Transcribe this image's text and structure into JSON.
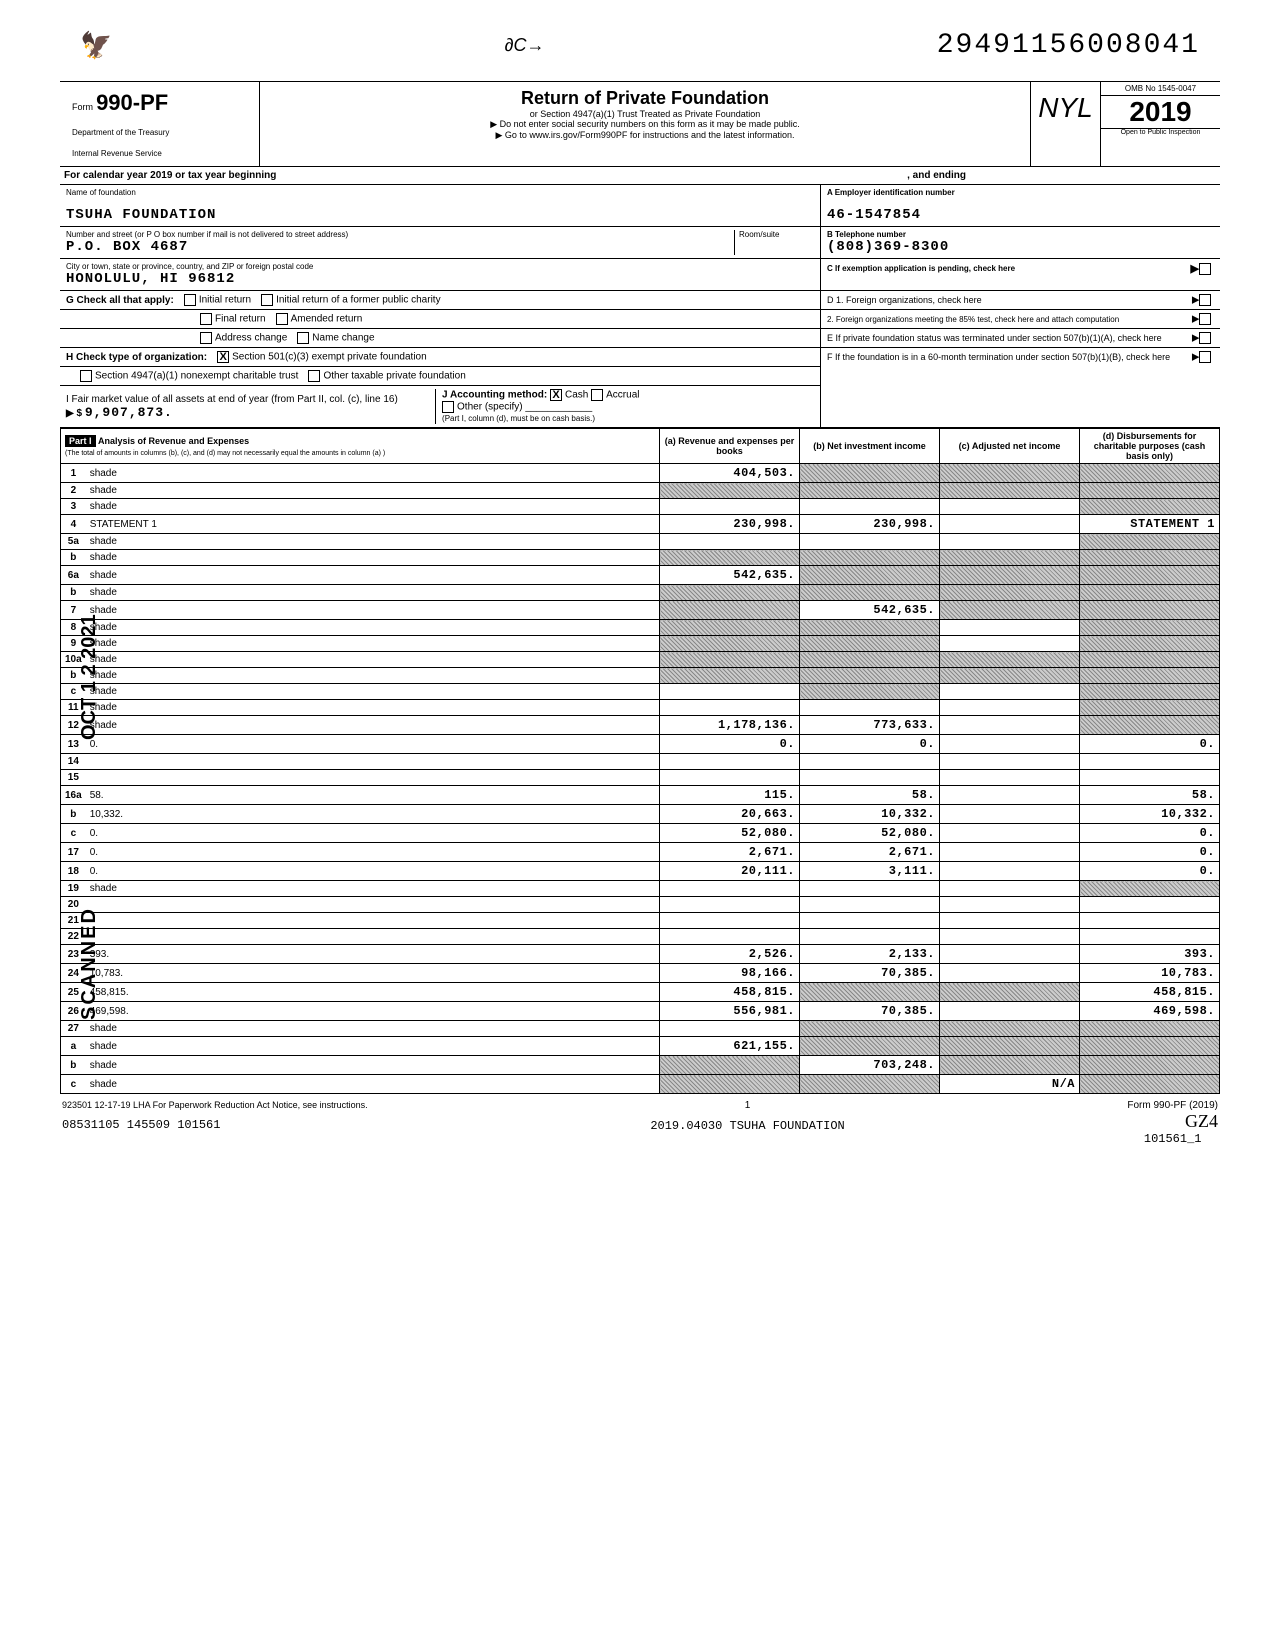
{
  "doc_id_top": "29491156008041",
  "form": {
    "number": "990-PF",
    "prefix": "Form",
    "dept1": "Department of the Treasury",
    "dept2": "Internal Revenue Service",
    "title": "Return of Private Foundation",
    "sub1": "or Section 4947(a)(1) Trust Treated as Private Foundation",
    "sub2": "▶ Do not enter social security numbers on this form as it may be made public.",
    "sub3": "▶ Go to www.irs.gov/Form990PF for instructions and the latest information.",
    "omb": "OMB No 1545-0047",
    "year": "2019",
    "open": "Open to Public Inspection",
    "initials": "NYL"
  },
  "cal_year": {
    "prefix": "For calendar year 2019 or tax year beginning",
    "mid": ", and ending"
  },
  "foundation": {
    "name_label": "Name of foundation",
    "name": "TSUHA FOUNDATION",
    "addr_label": "Number and street (or P O box number if mail is not delivered to street address)",
    "addr": "P.O. BOX 4687",
    "room_label": "Room/suite",
    "city_label": "City or town, state or province, country, and ZIP or foreign postal code",
    "city": "HONOLULU, HI   96812"
  },
  "right_block": {
    "A_label": "A  Employer identification number",
    "A_val": "46-1547854",
    "B_label": "B  Telephone number",
    "B_val": "(808)369-8300",
    "C_label": "C  If exemption application is pending, check here",
    "D1": "D 1. Foreign organizations, check here",
    "D2": "2. Foreign organizations meeting the 85% test, check here and attach computation",
    "E": "E  If private foundation status was terminated under section 507(b)(1)(A), check here",
    "F": "F  If the foundation is in a 60-month termination under section 507(b)(1)(B), check here"
  },
  "G": {
    "label": "G  Check all that apply:",
    "opts": [
      "Initial return",
      "Final return",
      "Address change",
      "Initial return of a former public charity",
      "Amended return",
      "Name change"
    ]
  },
  "H": {
    "label": "H  Check type of organization:",
    "opt1": "Section 501(c)(3) exempt private foundation",
    "opt1_checked": "X",
    "opt2": "Section 4947(a)(1) nonexempt charitable trust",
    "opt3": "Other taxable private foundation"
  },
  "I": {
    "label": "I  Fair market value of all assets at end of year (from Part II, col. (c), line 16)",
    "arrow": "▶ $",
    "value": "9,907,873.",
    "J_label": "J  Accounting method:",
    "J_cash": "Cash",
    "J_cash_x": "X",
    "J_accr": "Accrual",
    "J_other": "Other (specify)",
    "J_note": "(Part I, column (d), must be on cash basis.)"
  },
  "part1": {
    "tag": "Part I",
    "title": "Analysis of Revenue and Expenses",
    "title_sub": "(The total of amounts in columns (b), (c), and (d) may not necessarily equal the amounts in column (a) )",
    "cols": {
      "a": "(a) Revenue and expenses per books",
      "b": "(b) Net investment income",
      "c": "(c) Adjusted net income",
      "d": "(d) Disbursements for charitable purposes (cash basis only)"
    }
  },
  "rows": [
    {
      "n": "1",
      "d": "shade",
      "a": "404,503.",
      "b": "shade",
      "c": "shade"
    },
    {
      "n": "2",
      "d": "shade",
      "a": "shade",
      "b": "shade",
      "c": "shade"
    },
    {
      "n": "3",
      "d": "shade",
      "a": "",
      "b": "",
      "c": ""
    },
    {
      "n": "4",
      "d": "STATEMENT 1",
      "a": "230,998.",
      "b": "230,998.",
      "c": ""
    },
    {
      "n": "5a",
      "d": "shade",
      "a": "",
      "b": "",
      "c": ""
    },
    {
      "n": "b",
      "d": "shade",
      "a": "shade",
      "b": "shade",
      "c": "shade"
    },
    {
      "n": "6a",
      "d": "shade",
      "a": "542,635.",
      "b": "shade",
      "c": "shade"
    },
    {
      "n": "b",
      "d": "shade",
      "a": "shade",
      "b": "shade",
      "c": "shade"
    },
    {
      "n": "7",
      "d": "shade",
      "a": "shade",
      "b": "542,635.",
      "c": "shade"
    },
    {
      "n": "8",
      "d": "shade",
      "a": "shade",
      "b": "shade",
      "c": ""
    },
    {
      "n": "9",
      "d": "shade",
      "a": "shade",
      "b": "shade",
      "c": ""
    },
    {
      "n": "10a",
      "d": "shade",
      "a": "shade",
      "b": "shade",
      "c": "shade"
    },
    {
      "n": "b",
      "d": "shade",
      "a": "shade",
      "b": "shade",
      "c": "shade"
    },
    {
      "n": "c",
      "d": "shade",
      "a": "",
      "b": "shade",
      "c": ""
    },
    {
      "n": "11",
      "d": "shade",
      "a": "",
      "b": "",
      "c": ""
    },
    {
      "n": "12",
      "d": "shade",
      "a": "1,178,136.",
      "b": "773,633.",
      "c": ""
    },
    {
      "n": "13",
      "d": "0.",
      "a": "0.",
      "b": "0.",
      "c": ""
    },
    {
      "n": "14",
      "d": "",
      "a": "",
      "b": "",
      "c": ""
    },
    {
      "n": "15",
      "d": "",
      "a": "",
      "b": "",
      "c": ""
    },
    {
      "n": "16a",
      "d": "58.",
      "a": "115.",
      "b": "58.",
      "c": ""
    },
    {
      "n": "b",
      "d": "10,332.",
      "a": "20,663.",
      "b": "10,332.",
      "c": ""
    },
    {
      "n": "c",
      "d": "0.",
      "a": "52,080.",
      "b": "52,080.",
      "c": ""
    },
    {
      "n": "17",
      "d": "0.",
      "a": "2,671.",
      "b": "2,671.",
      "c": ""
    },
    {
      "n": "18",
      "d": "0.",
      "a": "20,111.",
      "b": "3,111.",
      "c": ""
    },
    {
      "n": "19",
      "d": "shade",
      "a": "",
      "b": "",
      "c": ""
    },
    {
      "n": "20",
      "d": "",
      "a": "",
      "b": "",
      "c": ""
    },
    {
      "n": "21",
      "d": "",
      "a": "",
      "b": "",
      "c": ""
    },
    {
      "n": "22",
      "d": "",
      "a": "",
      "b": "",
      "c": ""
    },
    {
      "n": "23",
      "d": "393.",
      "a": "2,526.",
      "b": "2,133.",
      "c": ""
    },
    {
      "n": "24",
      "d": "10,783.",
      "a": "98,166.",
      "b": "70,385.",
      "c": ""
    },
    {
      "n": "25",
      "d": "458,815.",
      "a": "458,815.",
      "b": "shade",
      "c": "shade"
    },
    {
      "n": "26",
      "d": "469,598.",
      "a": "556,981.",
      "b": "70,385.",
      "c": ""
    },
    {
      "n": "27",
      "d": "shade",
      "a": "",
      "b": "shade",
      "c": "shade"
    },
    {
      "n": "a",
      "d": "shade",
      "a": "621,155.",
      "b": "shade",
      "c": "shade"
    },
    {
      "n": "b",
      "d": "shade",
      "a": "shade",
      "b": "703,248.",
      "c": "shade"
    },
    {
      "n": "c",
      "d": "shade",
      "a": "shade",
      "b": "shade",
      "c": "N/A"
    }
  ],
  "side_groups": {
    "revenue": "Revenue",
    "expenses": "Operating and Administrative Expenses"
  },
  "stamps": {
    "scanned": "SCANNED",
    "date": "OCT 1 2 2021"
  },
  "footer": {
    "left1": "923501 12-17-19   LHA  For Paperwork Reduction Act Notice, see instructions.",
    "left2": "08531105 145509 101561",
    "mid1": "1",
    "mid2": "2019.04030 TSUHA FOUNDATION",
    "right1": "Form 990-PF (2019)",
    "right_hand": "GZ4",
    "right2": "101561_1"
  }
}
